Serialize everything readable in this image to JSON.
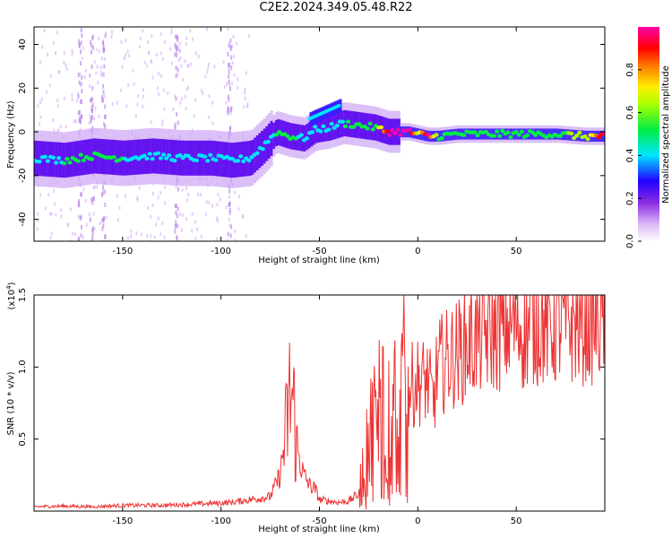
{
  "title": "C2E2.2024.349.05.48.R22",
  "chart_data": [
    {
      "type": "heatmap",
      "xlabel": "Height of straight line (km)",
      "ylabel": "Frequency (Hz)",
      "xlim": [
        -195,
        95
      ],
      "ylim": [
        -50,
        48
      ],
      "xticks": [
        -150,
        -100,
        -50,
        0,
        50
      ],
      "yticks": [
        -40,
        -20,
        0,
        20,
        40
      ],
      "colorbar": {
        "label": "Normalized spectral amplitude",
        "range": [
          0,
          1
        ],
        "ticks": [
          "0.0",
          "0.2",
          "0.4",
          "0.6",
          "0.8"
        ],
        "tick_values": [
          0.0,
          0.2,
          0.4,
          0.6,
          0.8
        ],
        "colormap": "rainbow (white-violet-blue-cyan-green-yellow-red-magenta)"
      },
      "main_track": {
        "x": [
          -195,
          -180,
          -165,
          -150,
          -135,
          -120,
          -105,
          -95,
          -85,
          -78,
          -72,
          -65,
          -58,
          -52,
          -45,
          -38,
          -30,
          -22,
          -15,
          -5,
          0,
          5,
          10,
          20,
          35,
          50,
          70,
          85,
          95
        ],
        "y": [
          -12,
          -13,
          -11,
          -12,
          -11,
          -12,
          -12,
          -13,
          -12,
          -6,
          0,
          -2,
          -3,
          1,
          2,
          4,
          3,
          2,
          0,
          0,
          -1,
          -2,
          -2,
          -1,
          -1,
          -1,
          -1,
          -2,
          -2
        ],
        "peak_amplitude": [
          0.35,
          0.4,
          0.42,
          0.4,
          0.4,
          0.38,
          0.4,
          0.4,
          0.35,
          0.3,
          0.4,
          0.45,
          0.35,
          0.4,
          0.35,
          0.4,
          0.5,
          0.45,
          0.95,
          0.95,
          0.6,
          0.95,
          0.5,
          0.45,
          0.45,
          0.5,
          0.5,
          0.55,
          0.95
        ]
      },
      "secondary_track": {
        "x": [
          -55,
          -50,
          -45,
          -40
        ],
        "y": [
          6,
          8,
          10,
          12
        ]
      }
    },
    {
      "type": "line",
      "xlabel": "Height of straight line (km)",
      "ylabel": "SNR (10 * v/v)",
      "y_multiplier": "(x10",
      "y_multiplier_exp": "4",
      "y_multiplier_close": ")",
      "xlim": [
        -195,
        95
      ],
      "ylim": [
        0,
        15000
      ],
      "xticks": [
        -150,
        -100,
        -50,
        0,
        50
      ],
      "yticks": [
        0.5,
        1.0,
        1.5
      ],
      "ytick_labels": [
        "0.5",
        "1.0",
        "1.5"
      ],
      "color": "#ee3333",
      "series": [
        {
          "x": [
            -195,
            -180,
            -165,
            -150,
            -130,
            -110,
            -95,
            -85,
            -75,
            -70,
            -67,
            -65,
            -63,
            -62,
            -60,
            -58,
            -55,
            -52,
            -50,
            -45,
            -40,
            -35,
            -30,
            -27,
            -25,
            -22,
            -20,
            -17,
            -15,
            -12,
            -10,
            -7,
            -5,
            0,
            5,
            8,
            10,
            15,
            20,
            25,
            30,
            40,
            50,
            55,
            60,
            70,
            80,
            90,
            95
          ],
          "y": [
            300,
            350,
            300,
            400,
            400,
            500,
            600,
            800,
            1000,
            2500,
            5500,
            8000,
            7500,
            4500,
            3500,
            2500,
            1800,
            1500,
            800,
            700,
            600,
            700,
            1200,
            3500,
            5000,
            6000,
            7000,
            8000,
            6500,
            7500,
            7000,
            8000,
            8500,
            9000,
            9000,
            7500,
            10000,
            10500,
            11000,
            11500,
            12000,
            12500,
            13000,
            12500,
            13200,
            13000,
            13200,
            13300,
            13400
          ]
        }
      ]
    }
  ]
}
